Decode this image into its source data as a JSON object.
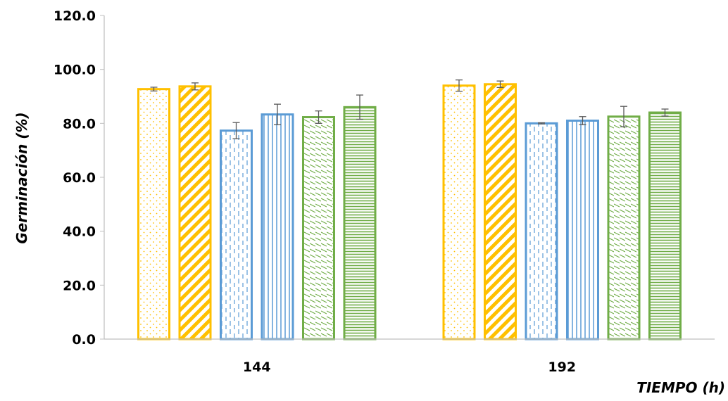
{
  "chart_data": {
    "type": "bar",
    "xlabel": "TIEMPO (h)",
    "ylabel": "Germinación (%)",
    "ylim": [
      0,
      120
    ],
    "yticks": [
      "0.0",
      "20.0",
      "40.0",
      "60.0",
      "80.0",
      "100.0",
      "120.0"
    ],
    "grid": false,
    "legend": "none",
    "categories": [
      "144",
      "192"
    ],
    "series": [
      {
        "color": "#FFC000",
        "pattern": "dots",
        "values": [
          92.7,
          94.0
        ],
        "errors": [
          0.7,
          2.1
        ]
      },
      {
        "color": "#FFC000",
        "pattern": "diagonal",
        "values": [
          93.7,
          94.5
        ],
        "errors": [
          1.3,
          1.2
        ]
      },
      {
        "color": "#5B9BD5",
        "pattern": "dashed-vertical",
        "values": [
          77.3,
          80.0
        ],
        "errors": [
          3.0,
          0.2
        ]
      },
      {
        "color": "#5B9BD5",
        "pattern": "vertical",
        "values": [
          83.3,
          81.0
        ],
        "errors": [
          3.8,
          1.5
        ]
      },
      {
        "color": "#70AD47",
        "pattern": "wave",
        "values": [
          82.3,
          82.5
        ],
        "errors": [
          2.3,
          3.8
        ]
      },
      {
        "color": "#70AD47",
        "pattern": "horizontal",
        "values": [
          86.0,
          84.0
        ],
        "errors": [
          4.5,
          1.3
        ]
      }
    ]
  }
}
